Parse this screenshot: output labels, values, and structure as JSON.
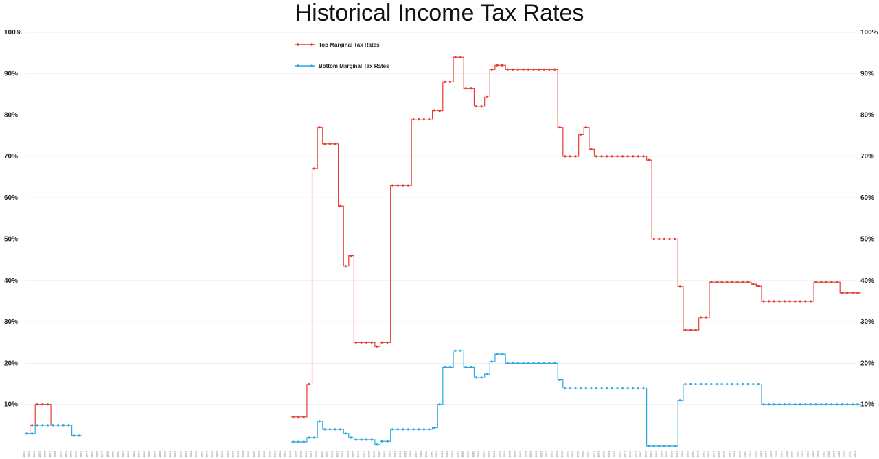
{
  "chart_data": {
    "type": "line",
    "title": "Historical Income Tax Rates",
    "xlabel": "",
    "ylabel": "",
    "ylim": [
      0,
      100
    ],
    "yticks": [
      "10%",
      "20%",
      "30%",
      "40%",
      "50%",
      "60%",
      "70%",
      "80%",
      "90%",
      "100%"
    ],
    "xlim": [
      1862,
      2021
    ],
    "grid": true,
    "legend": "top-left",
    "series": [
      {
        "name": "Top Marginal Tax Rates",
        "color": "#e53b30",
        "x": [
          1862,
          1863,
          1864,
          1865,
          1866,
          1867,
          1868,
          1869,
          1870,
          1871,
          1872,
          1913,
          1914,
          1915,
          1916,
          1917,
          1918,
          1919,
          1920,
          1921,
          1922,
          1923,
          1924,
          1925,
          1926,
          1927,
          1928,
          1929,
          1930,
          1931,
          1932,
          1933,
          1934,
          1935,
          1936,
          1937,
          1938,
          1939,
          1940,
          1941,
          1942,
          1943,
          1944,
          1945,
          1946,
          1947,
          1948,
          1949,
          1950,
          1951,
          1952,
          1953,
          1954,
          1955,
          1956,
          1957,
          1958,
          1959,
          1960,
          1961,
          1962,
          1963,
          1964,
          1965,
          1966,
          1967,
          1968,
          1969,
          1970,
          1971,
          1972,
          1973,
          1974,
          1975,
          1976,
          1977,
          1978,
          1979,
          1980,
          1981,
          1982,
          1983,
          1984,
          1985,
          1986,
          1987,
          1988,
          1989,
          1990,
          1991,
          1992,
          1993,
          1994,
          1995,
          1996,
          1997,
          1998,
          1999,
          2000,
          2001,
          2002,
          2003,
          2004,
          2005,
          2006,
          2007,
          2008,
          2009,
          2010,
          2011,
          2012,
          2013,
          2014,
          2015,
          2016,
          2017,
          2018,
          2019,
          2020,
          2021
        ],
        "values": [
          3,
          5,
          10,
          10,
          10,
          5,
          5,
          5,
          5,
          2.5,
          2.5,
          7,
          7,
          7,
          15,
          67,
          77,
          73,
          73,
          73,
          58,
          43.5,
          46,
          25,
          25,
          25,
          25,
          24,
          25,
          25,
          63,
          63,
          63,
          63,
          79,
          79,
          79,
          79,
          81.1,
          81,
          88,
          88,
          94,
          94,
          86.45,
          86.45,
          82.13,
          82.13,
          84.36,
          91,
          92,
          92,
          91,
          91,
          91,
          91,
          91,
          91,
          91,
          91,
          91,
          91,
          77,
          70,
          70,
          70,
          75.25,
          77,
          71.75,
          70,
          70,
          70,
          70,
          70,
          70,
          70,
          70,
          70,
          70,
          69.13,
          50,
          50,
          50,
          50,
          50,
          38.5,
          28,
          28,
          28,
          31,
          31,
          39.6,
          39.6,
          39.6,
          39.6,
          39.6,
          39.6,
          39.6,
          39.6,
          39.1,
          38.6,
          35,
          35,
          35,
          35,
          35,
          35,
          35,
          35,
          35,
          35,
          39.6,
          39.6,
          39.6,
          39.6,
          39.6,
          37,
          37,
          37,
          37
        ]
      },
      {
        "name": "Bottom Marginal Tax Rates",
        "color": "#29a8e0",
        "x": [
          1862,
          1863,
          1864,
          1865,
          1866,
          1867,
          1868,
          1869,
          1870,
          1871,
          1872,
          1913,
          1914,
          1915,
          1916,
          1917,
          1918,
          1919,
          1920,
          1921,
          1922,
          1923,
          1924,
          1925,
          1926,
          1927,
          1928,
          1929,
          1930,
          1931,
          1932,
          1933,
          1934,
          1935,
          1936,
          1937,
          1938,
          1939,
          1940,
          1941,
          1942,
          1943,
          1944,
          1945,
          1946,
          1947,
          1948,
          1949,
          1950,
          1951,
          1952,
          1953,
          1954,
          1955,
          1956,
          1957,
          1958,
          1959,
          1960,
          1961,
          1962,
          1963,
          1964,
          1965,
          1966,
          1967,
          1968,
          1969,
          1970,
          1971,
          1972,
          1973,
          1974,
          1975,
          1976,
          1977,
          1978,
          1979,
          1980,
          1981,
          1982,
          1983,
          1984,
          1985,
          1986,
          1987,
          1988,
          1989,
          1990,
          1991,
          1992,
          1993,
          1994,
          1995,
          1996,
          1997,
          1998,
          1999,
          2000,
          2001,
          2002,
          2003,
          2004,
          2005,
          2006,
          2007,
          2008,
          2009,
          2010,
          2011,
          2012,
          2013,
          2014,
          2015,
          2016,
          2017,
          2018,
          2019,
          2020,
          2021
        ],
        "values": [
          3,
          3,
          5,
          5,
          5,
          5,
          5,
          5,
          5,
          2.5,
          2.5,
          1,
          1,
          1,
          2,
          2,
          6,
          4,
          4,
          4,
          4,
          3,
          2,
          1.5,
          1.5,
          1.5,
          1.5,
          0.375,
          1.125,
          1.125,
          4,
          4,
          4,
          4,
          4,
          4,
          4,
          4,
          4.4,
          10,
          19,
          19,
          23,
          23,
          19,
          19,
          16.6,
          16.6,
          17.4,
          20.4,
          22.2,
          22.2,
          20,
          20,
          20,
          20,
          20,
          20,
          20,
          20,
          20,
          20,
          16,
          14,
          14,
          14,
          14,
          14,
          14,
          14,
          14,
          14,
          14,
          14,
          14,
          14,
          14,
          14,
          14,
          0,
          0,
          0,
          0,
          0,
          0,
          11,
          15,
          15,
          15,
          15,
          15,
          15,
          15,
          15,
          15,
          15,
          15,
          15,
          15,
          15,
          15,
          10,
          10,
          10,
          10,
          10,
          10,
          10,
          10,
          10,
          10,
          10,
          10,
          10,
          10,
          10,
          10,
          10,
          10,
          10
        ]
      }
    ]
  }
}
